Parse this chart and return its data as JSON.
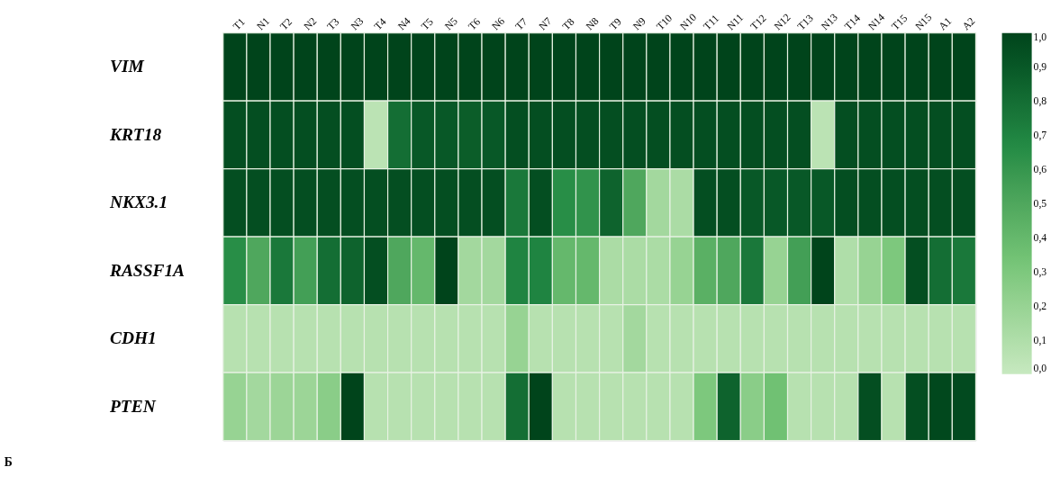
{
  "chart_data": {
    "type": "heatmap",
    "categories": [
      "T1",
      "N1",
      "T2",
      "N2",
      "T3",
      "N3",
      "T4",
      "N4",
      "T5",
      "N5",
      "T6",
      "N6",
      "T7",
      "N7",
      "T8",
      "N8",
      "T9",
      "N9",
      "T10",
      "N10",
      "T11",
      "N11",
      "T12",
      "N12",
      "T13",
      "N13",
      "T14",
      "N14",
      "T15",
      "N15",
      "A1",
      "A2"
    ],
    "y_categories": [
      "VIM",
      "KRT18",
      "NKX3.1",
      "RASSF1A",
      "CDH1",
      "PTEN"
    ],
    "cells": [
      [
        1,
        1,
        1,
        1,
        1,
        1,
        1,
        1,
        1,
        1,
        1,
        1,
        1,
        1,
        1,
        1,
        1,
        1,
        1,
        1,
        1,
        1,
        1,
        1,
        1,
        1,
        1,
        1,
        1,
        1,
        1,
        1
      ],
      [
        0.95,
        0.95,
        0.95,
        0.95,
        0.95,
        0.95,
        0.05,
        0.8,
        0.9,
        0.9,
        0.88,
        0.9,
        0.95,
        0.95,
        0.95,
        0.95,
        0.95,
        0.95,
        0.95,
        0.95,
        0.95,
        0.95,
        0.95,
        0.95,
        0.95,
        0.05,
        0.95,
        0.95,
        0.95,
        0.95,
        0.95,
        0.95
      ],
      [
        0.95,
        0.95,
        0.95,
        0.95,
        0.95,
        0.95,
        0.95,
        0.95,
        0.95,
        0.95,
        0.95,
        0.95,
        0.75,
        0.95,
        0.65,
        0.62,
        0.85,
        0.5,
        0.15,
        0.12,
        0.95,
        0.95,
        0.9,
        0.9,
        0.9,
        0.9,
        0.95,
        0.95,
        0.95,
        0.95,
        0.95,
        0.95
      ],
      [
        0.65,
        0.5,
        0.75,
        0.55,
        0.8,
        0.85,
        0.95,
        0.5,
        0.4,
        1,
        0.15,
        0.15,
        0.7,
        0.7,
        0.4,
        0.4,
        0.12,
        0.12,
        0.12,
        0.2,
        0.45,
        0.5,
        0.75,
        0.2,
        0.55,
        1,
        0.1,
        0.2,
        0.3,
        0.95,
        0.8,
        0.75
      ],
      [
        0.07,
        0.07,
        0.07,
        0.07,
        0.07,
        0.07,
        0.07,
        0.07,
        0.07,
        0.07,
        0.07,
        0.07,
        0.2,
        0.07,
        0.07,
        0.07,
        0.07,
        0.15,
        0.07,
        0.07,
        0.07,
        0.07,
        0.07,
        0.07,
        0.07,
        0.07,
        0.07,
        0.07,
        0.07,
        0.07,
        0.07,
        0.07
      ],
      [
        0.2,
        0.15,
        0.18,
        0.18,
        0.25,
        1,
        0.07,
        0.07,
        0.07,
        0.07,
        0.07,
        0.07,
        0.8,
        1,
        0.07,
        0.07,
        0.07,
        0.07,
        0.07,
        0.07,
        0.3,
        0.85,
        0.25,
        0.35,
        0.07,
        0.07,
        0.07,
        0.95,
        0.07,
        0.95,
        0.98,
        0.97
      ]
    ],
    "clim": [
      0,
      1
    ],
    "cticks": [
      {
        "value": 0,
        "label": "0,0"
      },
      {
        "value": 0.1,
        "label": "0,1"
      },
      {
        "value": 0.2,
        "label": "0,2"
      },
      {
        "value": 0.3,
        "label": "0,3"
      },
      {
        "value": 0.4,
        "label": "0,4"
      },
      {
        "value": 0.5,
        "label": "0,5"
      },
      {
        "value": 0.6,
        "label": "0,6"
      },
      {
        "value": 0.7,
        "label": "0,7"
      },
      {
        "value": 0.8,
        "label": "0,8"
      },
      {
        "value": 0.9,
        "label": "0,9"
      },
      {
        "value": 1,
        "label": "1,0"
      }
    ],
    "annotations": [
      "Б"
    ]
  }
}
